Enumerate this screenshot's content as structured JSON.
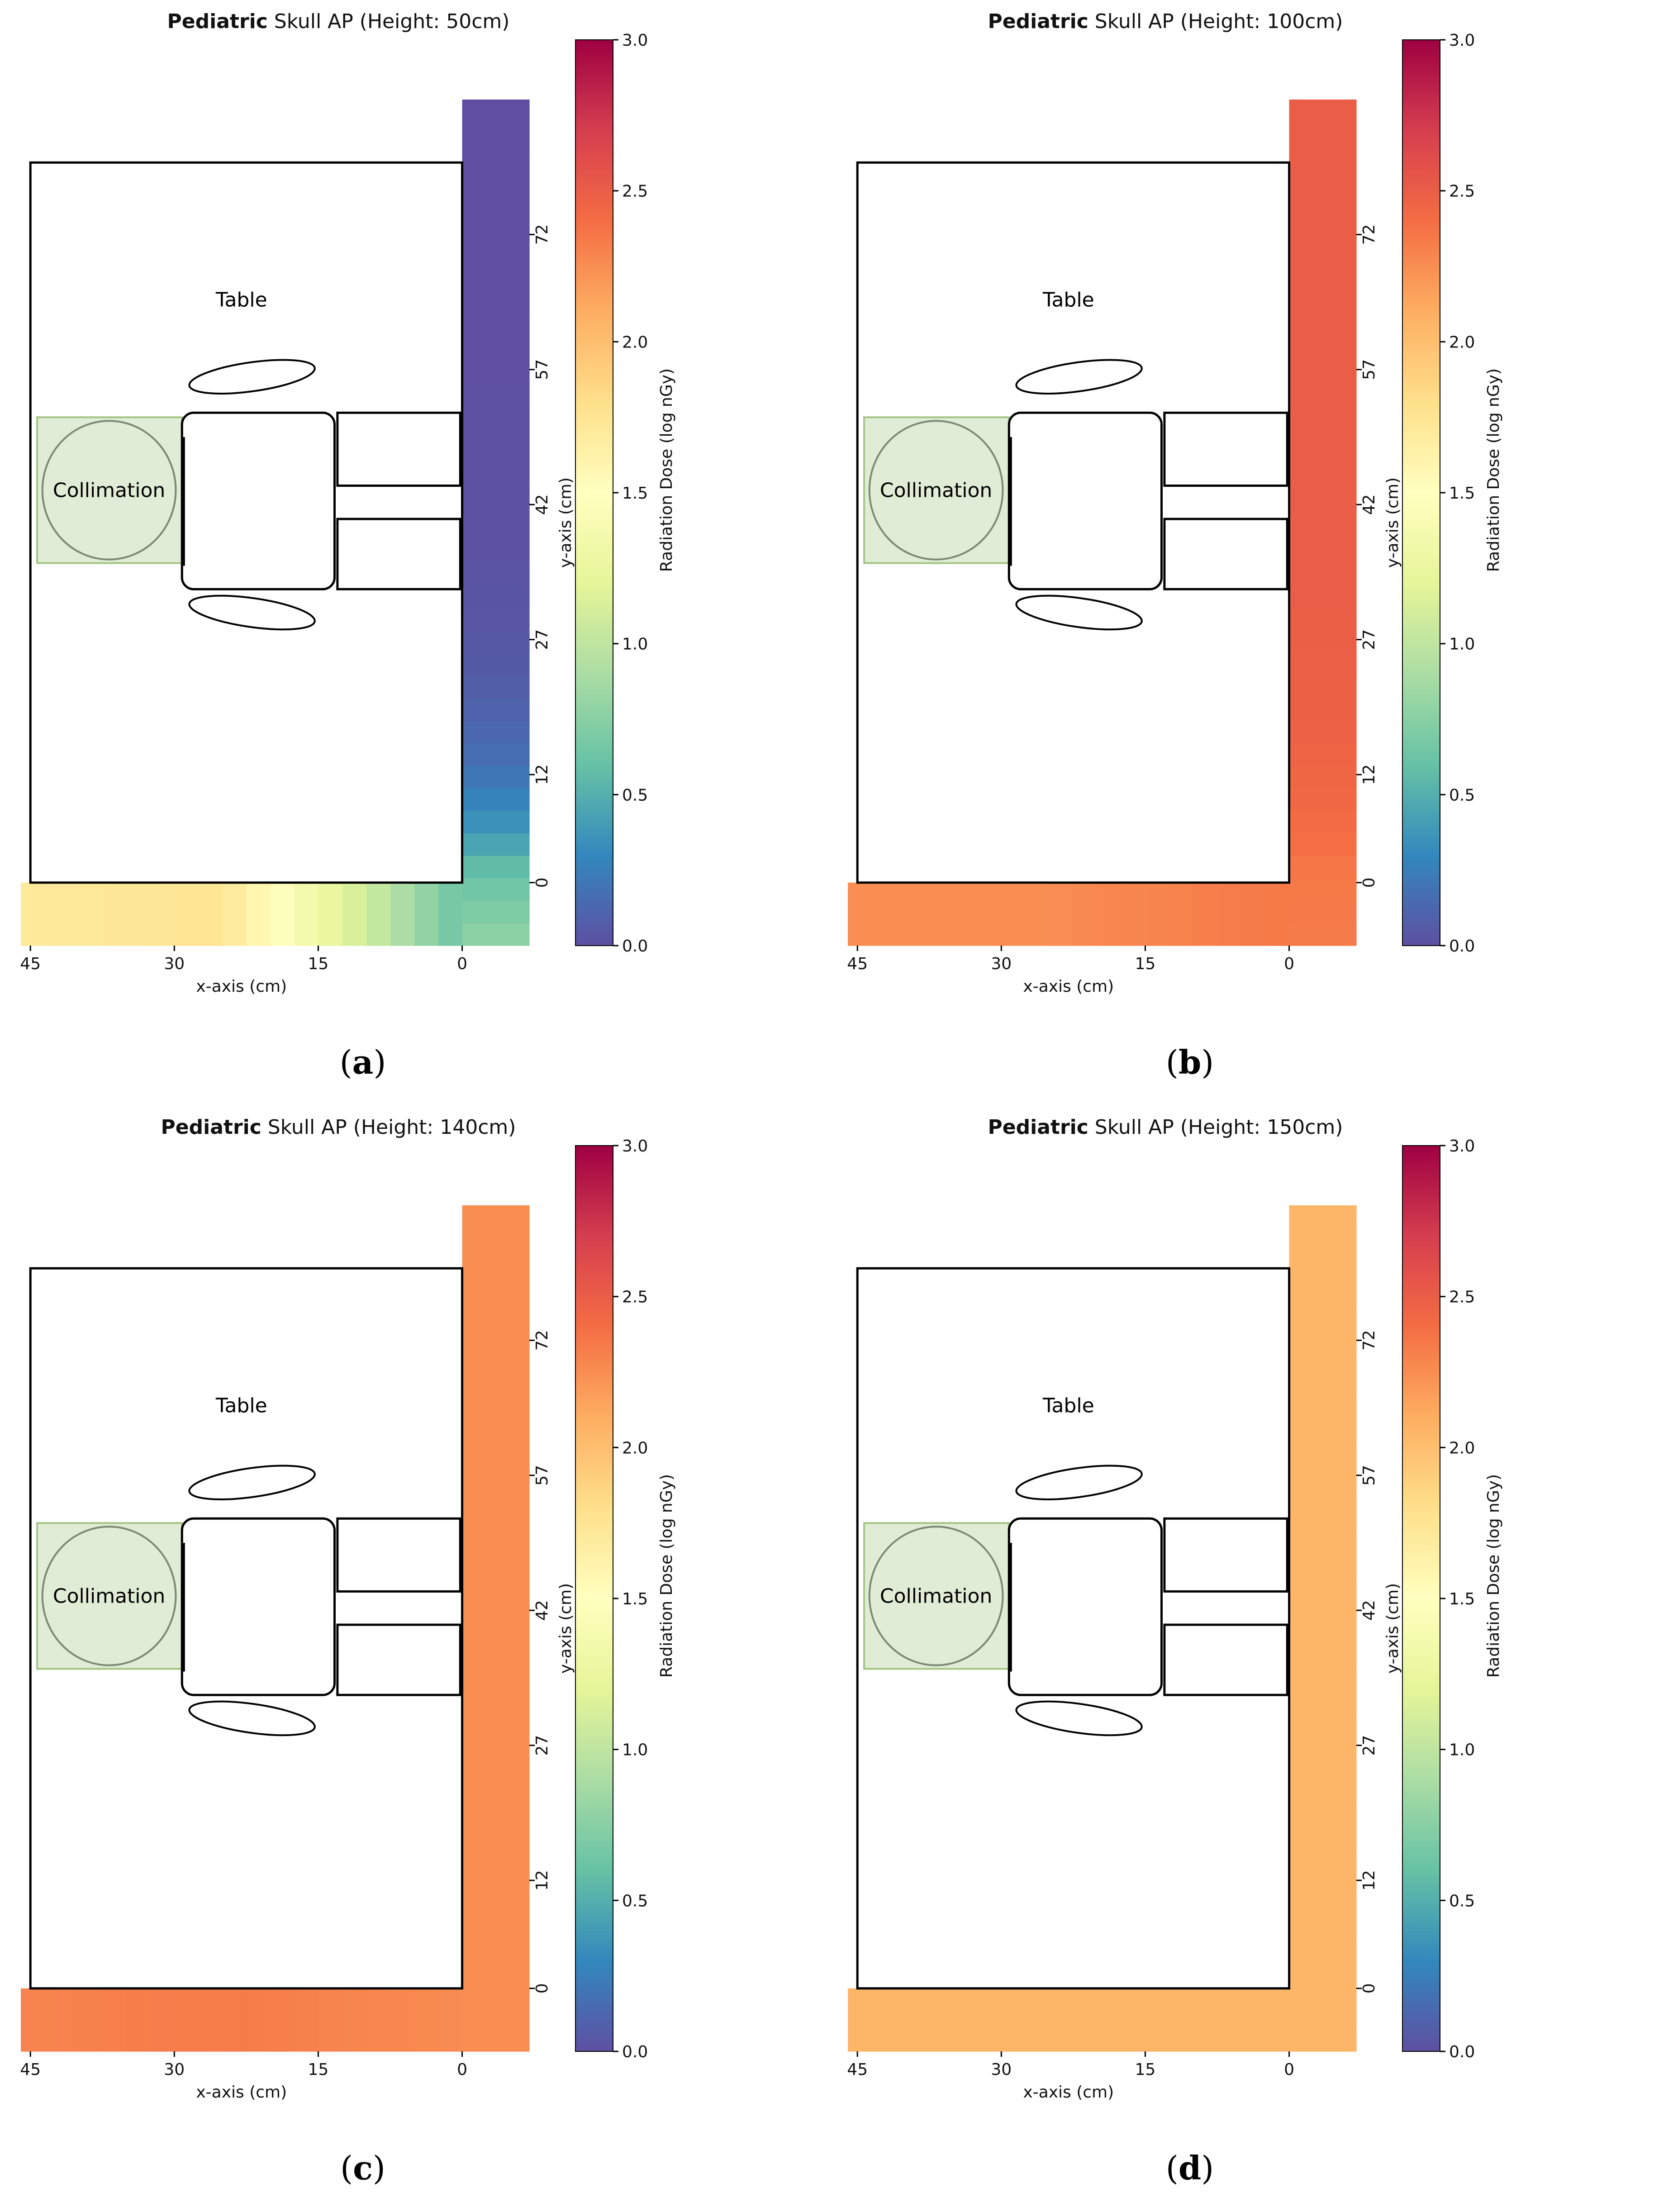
{
  "colors": {
    "spectral_stops": [
      "#5e4fa2",
      "#3288bd",
      "#66c2a5",
      "#abdda4",
      "#e6f598",
      "#ffffbf",
      "#fee08b",
      "#fdae61",
      "#f46d43",
      "#d53e4f",
      "#9e0142"
    ],
    "outline": "#000000",
    "collimation_fill": "#e0ecd5",
    "collimation_stroke": "#a3c585",
    "circle_stroke": "#7a8a72"
  },
  "chart_data": [
    {
      "type": "heatmap",
      "panel_label": "a",
      "title_bold": "Pediatric",
      "title_rest": " Skull AP (Height: 50cm)",
      "xlabel": "x-axis (cm)",
      "ylabel": "y-axis (cm)",
      "x_ticks": [
        "45",
        "30",
        "15",
        "0"
      ],
      "y_ticks": [
        "0",
        "12",
        "27",
        "42",
        "57",
        "72"
      ],
      "xlim": [
        -7,
        46
      ],
      "ylim": [
        -7,
        87
      ],
      "colorbar_label": "Radiation Dose (log nGy)",
      "colorbar_ticks": [
        "0.0",
        "0.5",
        "1.0",
        "1.5",
        "2.0",
        "2.5",
        "3.0"
      ],
      "colorbar_range": [
        0.0,
        3.0
      ],
      "table_label": "Table",
      "collimation_label": "Collimation",
      "dose_field": {
        "vertical_strip_high": 0.0,
        "corner": 0.6,
        "horizontal_strip_far": 1.7,
        "horizontal_peak": 1.75,
        "horizontal_peak_x": 20
      }
    },
    {
      "type": "heatmap",
      "panel_label": "b",
      "title_bold": "Pediatric",
      "title_rest": " Skull AP (Height: 100cm)",
      "xlabel": "x-axis (cm)",
      "ylabel": "y-axis (cm)",
      "x_ticks": [
        "45",
        "30",
        "15",
        "0"
      ],
      "y_ticks": [
        "0",
        "12",
        "27",
        "42",
        "57",
        "72"
      ],
      "xlim": [
        -7,
        46
      ],
      "ylim": [
        -7,
        87
      ],
      "colorbar_label": "Radiation Dose (log nGy)",
      "colorbar_ticks": [
        "0.0",
        "0.5",
        "1.0",
        "1.5",
        "2.0",
        "2.5",
        "3.0"
      ],
      "colorbar_range": [
        0.0,
        3.0
      ],
      "table_label": "Table",
      "collimation_label": "Collimation",
      "dose_field": {
        "vertical_strip_high": 2.5,
        "corner": 2.35,
        "horizontal_strip_far": 2.25,
        "horizontal_peak": 2.25,
        "horizontal_peak_x": 45
      }
    },
    {
      "type": "heatmap",
      "panel_label": "c",
      "title_bold": "Pediatric",
      "title_rest": " Skull AP (Height: 140cm)",
      "xlabel": "x-axis (cm)",
      "ylabel": "y-axis (cm)",
      "x_ticks": [
        "45",
        "30",
        "15",
        "0"
      ],
      "y_ticks": [
        "0",
        "12",
        "27",
        "42",
        "57",
        "72"
      ],
      "xlim": [
        -7,
        46
      ],
      "ylim": [
        -7,
        87
      ],
      "colorbar_label": "Radiation Dose (log nGy)",
      "colorbar_ticks": [
        "0.0",
        "0.5",
        "1.0",
        "1.5",
        "2.0",
        "2.5",
        "3.0"
      ],
      "colorbar_range": [
        0.0,
        3.0
      ],
      "table_label": "Table",
      "collimation_label": "Collimation",
      "dose_field": {
        "vertical_strip_high": 2.25,
        "corner": 2.25,
        "horizontal_strip_far": 2.28,
        "horizontal_peak": 2.33,
        "horizontal_peak_x": 25
      }
    },
    {
      "type": "heatmap",
      "panel_label": "d",
      "title_bold": "Pediatric",
      "title_rest": " Skull AP (Height: 150cm)",
      "xlabel": "x-axis (cm)",
      "ylabel": "y-axis (cm)",
      "x_ticks": [
        "45",
        "30",
        "15",
        "0"
      ],
      "y_ticks": [
        "0",
        "12",
        "27",
        "42",
        "57",
        "72"
      ],
      "xlim": [
        -7,
        46
      ],
      "ylim": [
        -7,
        87
      ],
      "colorbar_label": "Radiation Dose (log nGy)",
      "colorbar_ticks": [
        "0.0",
        "0.5",
        "1.0",
        "1.5",
        "2.0",
        "2.5",
        "3.0"
      ],
      "colorbar_range": [
        0.0,
        3.0
      ],
      "table_label": "Table",
      "collimation_label": "Collimation",
      "dose_field": {
        "vertical_strip_high": 2.05,
        "corner": 2.05,
        "horizontal_strip_far": 2.05,
        "horizontal_peak": 2.05,
        "horizontal_peak_x": 20
      }
    }
  ]
}
